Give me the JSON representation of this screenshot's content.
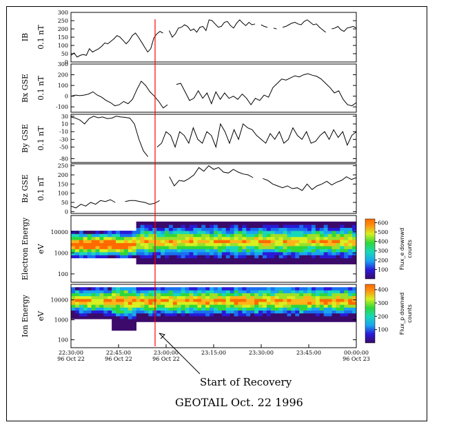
{
  "annotation": "Start of Recovery",
  "title": "GEOTAIL Oct. 22 1996",
  "time_ticks": [
    {
      "time": "22:30:00",
      "date": "96 Oct 22"
    },
    {
      "time": "22:45:00",
      "date": "96 Oct 22"
    },
    {
      "time": "23:00:00",
      "date": "96 Oct 22"
    },
    {
      "time": "23:15:00",
      "date": ""
    },
    {
      "time": "23:30:00",
      "date": ""
    },
    {
      "time": "23:45:00",
      "date": ""
    },
    {
      "time": "00:00:00",
      "date": "96 Oct 23"
    }
  ],
  "colors": {
    "line": "#000000",
    "marker": "#ff0000",
    "frame": "#000000"
  },
  "chart_data": [
    {
      "type": "line",
      "panel": "IB",
      "ylabel": "IB",
      "unit": "0.1 nT",
      "yticks": [
        0,
        50,
        100,
        150,
        200,
        250,
        300
      ],
      "ylim": [
        0,
        300
      ],
      "x_minutes_from_2230": [
        0,
        2,
        3,
        5,
        7,
        8,
        10,
        12,
        14,
        17,
        19,
        21,
        23,
        25,
        27,
        29,
        31,
        33,
        35,
        37,
        39,
        41,
        43,
        45,
        47,
        49,
        51,
        53,
        55,
        57,
        59,
        61,
        63,
        65,
        67,
        69,
        71,
        73,
        75,
        77,
        79,
        81,
        83,
        85,
        87,
        89,
        91,
        93
      ],
      "values": [
        [
          0,
          40
        ],
        [
          1,
          55
        ],
        [
          2,
          30
        ],
        [
          3,
          40
        ],
        [
          4,
          45
        ],
        [
          5,
          40
        ],
        [
          6,
          80
        ],
        [
          7,
          60
        ],
        [
          8,
          70
        ],
        [
          9,
          80
        ],
        [
          10,
          95
        ],
        [
          11,
          115
        ],
        [
          12,
          110
        ],
        [
          13,
          125
        ],
        [
          14,
          140
        ],
        [
          15,
          160
        ],
        [
          16,
          150
        ],
        [
          17,
          130
        ],
        [
          18,
          110
        ],
        [
          19,
          130
        ],
        [
          20,
          160
        ],
        [
          21,
          175
        ],
        [
          22,
          150
        ],
        [
          23,
          120
        ],
        [
          24,
          90
        ],
        [
          25,
          60
        ],
        [
          26,
          80
        ],
        [
          27,
          145
        ],
        [
          28,
          170
        ],
        [
          29,
          185
        ],
        [
          30,
          175
        ],
        [
          31,
          null
        ],
        [
          32,
          190
        ],
        [
          33,
          150
        ],
        [
          34,
          170
        ],
        [
          35,
          205
        ],
        [
          36,
          210
        ],
        [
          37,
          225
        ],
        [
          38,
          215
        ],
        [
          39,
          190
        ],
        [
          40,
          200
        ],
        [
          41,
          180
        ],
        [
          42,
          210
        ],
        [
          43,
          215
        ],
        [
          44,
          190
        ],
        [
          45,
          255
        ],
        [
          46,
          250
        ],
        [
          47,
          230
        ],
        [
          48,
          210
        ],
        [
          49,
          215
        ],
        [
          50,
          240
        ],
        [
          51,
          245
        ],
        [
          52,
          220
        ],
        [
          53,
          205
        ],
        [
          54,
          235
        ],
        [
          55,
          255
        ],
        [
          56,
          235
        ],
        [
          57,
          220
        ],
        [
          58,
          240
        ],
        [
          59,
          225
        ],
        [
          60,
          230
        ],
        [
          61,
          null
        ],
        [
          62,
          225
        ],
        [
          63,
          215
        ],
        [
          64,
          210
        ],
        [
          65,
          null
        ],
        [
          66,
          205
        ],
        [
          67,
          200
        ],
        [
          68,
          null
        ],
        [
          69,
          210
        ],
        [
          70,
          215
        ],
        [
          71,
          225
        ],
        [
          72,
          235
        ],
        [
          73,
          240
        ],
        [
          74,
          230
        ],
        [
          75,
          225
        ],
        [
          76,
          245
        ],
        [
          77,
          255
        ],
        [
          78,
          240
        ],
        [
          79,
          225
        ],
        [
          80,
          230
        ],
        [
          81,
          210
        ],
        [
          82,
          195
        ],
        [
          83,
          180
        ],
        [
          84,
          null
        ],
        [
          85,
          200
        ],
        [
          86,
          205
        ],
        [
          87,
          215
        ],
        [
          88,
          195
        ],
        [
          89,
          185
        ],
        [
          90,
          205
        ],
        [
          91,
          210
        ],
        [
          92,
          215
        ],
        [
          93,
          205
        ]
      ]
    },
    {
      "type": "line",
      "panel": "Bx GSE",
      "ylabel": "Bx GSE",
      "unit": "0.1 nT",
      "yticks": [
        -100,
        0,
        100,
        200,
        300
      ],
      "ylim": [
        -150,
        300
      ],
      "values": [
        [
          0,
          0
        ],
        [
          1,
          10
        ],
        [
          2,
          5
        ],
        [
          3,
          10
        ],
        [
          4,
          20
        ],
        [
          5,
          40
        ],
        [
          6,
          10
        ],
        [
          7,
          -10
        ],
        [
          8,
          -40
        ],
        [
          9,
          -60
        ],
        [
          10,
          -90
        ],
        [
          11,
          -80
        ],
        [
          12,
          -50
        ],
        [
          13,
          -70
        ],
        [
          14,
          -30
        ],
        [
          15,
          60
        ],
        [
          16,
          140
        ],
        [
          17,
          100
        ],
        [
          18,
          40
        ],
        [
          19,
          0
        ],
        [
          20,
          -50
        ],
        [
          21,
          -110
        ],
        [
          22,
          -80
        ],
        [
          23,
          null
        ],
        [
          24,
          110
        ],
        [
          25,
          120
        ],
        [
          26,
          40
        ],
        [
          27,
          -40
        ],
        [
          28,
          -20
        ],
        [
          29,
          50
        ],
        [
          30,
          -20
        ],
        [
          31,
          30
        ],
        [
          32,
          -70
        ],
        [
          33,
          40
        ],
        [
          34,
          -30
        ],
        [
          35,
          30
        ],
        [
          36,
          -20
        ],
        [
          37,
          0
        ],
        [
          38,
          -30
        ],
        [
          39,
          20
        ],
        [
          40,
          -20
        ],
        [
          41,
          -80
        ],
        [
          42,
          -20
        ],
        [
          43,
          -40
        ],
        [
          44,
          10
        ],
        [
          45,
          -10
        ],
        [
          46,
          80
        ],
        [
          47,
          120
        ],
        [
          48,
          160
        ],
        [
          49,
          150
        ],
        [
          50,
          170
        ],
        [
          51,
          190
        ],
        [
          52,
          180
        ],
        [
          53,
          200
        ],
        [
          54,
          210
        ],
        [
          55,
          195
        ],
        [
          56,
          185
        ],
        [
          57,
          160
        ],
        [
          58,
          120
        ],
        [
          59,
          80
        ],
        [
          60,
          30
        ],
        [
          61,
          50
        ],
        [
          62,
          -30
        ],
        [
          63,
          -80
        ],
        [
          64,
          -90
        ],
        [
          65,
          -60
        ]
      ]
    },
    {
      "type": "line",
      "panel": "By GSE",
      "ylabel": "By GSE",
      "unit": "0.1 nT",
      "yticks": [
        -80,
        -50,
        -30,
        -10,
        10,
        30
      ],
      "ylim": [
        -90,
        35
      ],
      "values": [
        [
          0,
          28
        ],
        [
          1,
          25
        ],
        [
          2,
          20
        ],
        [
          3,
          10
        ],
        [
          4,
          24
        ],
        [
          5,
          30
        ],
        [
          6,
          26
        ],
        [
          7,
          28
        ],
        [
          8,
          24
        ],
        [
          9,
          25
        ],
        [
          10,
          30
        ],
        [
          11,
          28
        ],
        [
          12,
          27
        ],
        [
          13,
          25
        ],
        [
          14,
          10
        ],
        [
          15,
          -30
        ],
        [
          16,
          -60
        ],
        [
          17,
          -75
        ],
        [
          18,
          null
        ],
        [
          19,
          -50
        ],
        [
          20,
          -40
        ],
        [
          21,
          -10
        ],
        [
          22,
          -20
        ],
        [
          23,
          -50
        ],
        [
          24,
          -10
        ],
        [
          25,
          -20
        ],
        [
          26,
          -40
        ],
        [
          27,
          0
        ],
        [
          28,
          -30
        ],
        [
          29,
          -40
        ],
        [
          30,
          -10
        ],
        [
          31,
          -20
        ],
        [
          32,
          -50
        ],
        [
          33,
          10
        ],
        [
          34,
          -10
        ],
        [
          35,
          -40
        ],
        [
          36,
          -5
        ],
        [
          37,
          -30
        ],
        [
          38,
          10
        ],
        [
          39,
          0
        ],
        [
          40,
          -5
        ],
        [
          41,
          -20
        ],
        [
          42,
          -30
        ],
        [
          43,
          -40
        ],
        [
          44,
          -15
        ],
        [
          45,
          -30
        ],
        [
          46,
          -10
        ],
        [
          47,
          -40
        ],
        [
          48,
          -30
        ],
        [
          49,
          0
        ],
        [
          50,
          -20
        ],
        [
          51,
          -30
        ],
        [
          52,
          -10
        ],
        [
          53,
          -40
        ],
        [
          54,
          -35
        ],
        [
          55,
          -20
        ],
        [
          56,
          -10
        ],
        [
          57,
          -30
        ],
        [
          58,
          -5
        ],
        [
          59,
          -25
        ],
        [
          60,
          -10
        ],
        [
          61,
          -45
        ],
        [
          62,
          -20
        ],
        [
          63,
          -10
        ]
      ]
    },
    {
      "type": "line",
      "panel": "Bz GSE",
      "ylabel": "Bz GSE",
      "unit": "0.1 nT",
      "yticks": [
        0,
        50,
        100,
        150,
        200,
        250
      ],
      "ylim": [
        -10,
        260
      ],
      "values": [
        [
          0,
          30
        ],
        [
          1,
          20
        ],
        [
          2,
          40
        ],
        [
          3,
          30
        ],
        [
          4,
          50
        ],
        [
          5,
          40
        ],
        [
          6,
          60
        ],
        [
          7,
          55
        ],
        [
          8,
          65
        ],
        [
          9,
          50
        ],
        [
          10,
          null
        ],
        [
          11,
          55
        ],
        [
          12,
          60
        ],
        [
          13,
          60
        ],
        [
          14,
          55
        ],
        [
          15,
          50
        ],
        [
          16,
          40
        ],
        [
          17,
          45
        ],
        [
          18,
          60
        ],
        [
          19,
          null
        ],
        [
          20,
          190
        ],
        [
          21,
          140
        ],
        [
          22,
          170
        ],
        [
          23,
          165
        ],
        [
          24,
          180
        ],
        [
          25,
          200
        ],
        [
          26,
          240
        ],
        [
          27,
          220
        ],
        [
          28,
          250
        ],
        [
          29,
          230
        ],
        [
          30,
          240
        ],
        [
          31,
          215
        ],
        [
          32,
          210
        ],
        [
          33,
          230
        ],
        [
          34,
          215
        ],
        [
          35,
          205
        ],
        [
          36,
          200
        ],
        [
          37,
          185
        ],
        [
          38,
          null
        ],
        [
          39,
          180
        ],
        [
          40,
          170
        ],
        [
          41,
          150
        ],
        [
          42,
          140
        ],
        [
          43,
          130
        ],
        [
          44,
          140
        ],
        [
          45,
          125
        ],
        [
          46,
          130
        ],
        [
          47,
          115
        ],
        [
          48,
          150
        ],
        [
          49,
          120
        ],
        [
          50,
          140
        ],
        [
          51,
          150
        ],
        [
          52,
          165
        ],
        [
          53,
          145
        ],
        [
          54,
          160
        ],
        [
          55,
          170
        ],
        [
          56,
          190
        ],
        [
          57,
          175
        ],
        [
          58,
          185
        ]
      ]
    },
    {
      "type": "heatmap",
      "panel": "Electron Energy",
      "ylabel": "Electron Energy",
      "unit": "eV",
      "yticks": [
        100,
        1000,
        10000
      ],
      "yscale": "log",
      "colorbar": {
        "label": "Flux_e downwd",
        "sublabel": "counts",
        "ticks": [
          100,
          200,
          300,
          400,
          500,
          600
        ]
      }
    },
    {
      "type": "heatmap",
      "panel": "Ion Energy",
      "ylabel": "Ion Energy",
      "unit": "eV",
      "yticks": [
        100,
        1000,
        10000
      ],
      "yscale": "log",
      "colorbar": {
        "label": "Flux_p downwd",
        "sublabel": "counts",
        "ticks": [
          100,
          200,
          300,
          400
        ]
      }
    }
  ]
}
